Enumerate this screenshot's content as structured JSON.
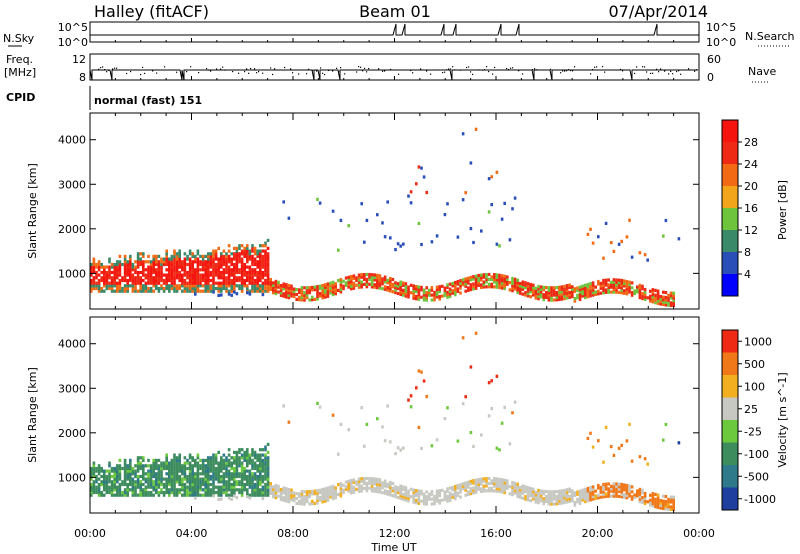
{
  "header": {
    "station": "Halley (fitACF)",
    "beam": "Beam 01",
    "date": "07/Apr/2014"
  },
  "status_panels": {
    "nsky_label": "N.Sky",
    "nsky_ticks": [
      "10^5",
      "10^0"
    ],
    "nsearch_label": "N.Search",
    "freq_label": "Freq.",
    "freq_unit": "[MHz]",
    "freq_ticks": [
      "12",
      "8"
    ],
    "nave_label": "Nave",
    "nave_ticks": [
      "60",
      "0"
    ],
    "cpid_label": "CPID",
    "cpid_value": "normal (fast) 151"
  },
  "chart_data": [
    {
      "type": "heatmap",
      "panel": "power",
      "ylabel": "Slant Range [km]",
      "yticks": [
        1000,
        2000,
        3000,
        4000
      ],
      "ylim": [
        200,
        4600
      ],
      "colorbar_label": "Power [dB]",
      "colorbar_ticks": [
        4,
        8,
        12,
        16,
        20,
        24,
        28
      ],
      "colorbar_colors": [
        "#0000ff",
        "#2a4eb8",
        "#3a8a6a",
        "#6ec43c",
        "#f2a51a",
        "#f26a14",
        "#ee2a14",
        "#f5150e"
      ]
    },
    {
      "type": "heatmap",
      "panel": "velocity",
      "ylabel": "Slant Range [km]",
      "yticks": [
        1000,
        2000,
        3000,
        4000
      ],
      "ylim": [
        200,
        4600
      ],
      "colorbar_label": "Velocity [m s^-1]",
      "colorbar_ticks": [
        "1000",
        "500",
        "100",
        "25",
        "-25",
        "-100",
        "-500",
        "-1000"
      ],
      "colorbar_colors": [
        "#1e3f9e",
        "#2e7a8a",
        "#3c8c5e",
        "#6cc83c",
        "#c8c8c2",
        "#f2b020",
        "#f07818",
        "#ee2a14"
      ],
      "xlabel": "Time UT",
      "xticks": [
        "00:00",
        "04:00",
        "08:00",
        "12:00",
        "16:00",
        "20:00",
        "00:00"
      ],
      "xlim_hours": [
        0,
        24
      ]
    }
  ],
  "colors": {
    "frame": "#000000",
    "ground_scatter": "#c8c8c2"
  }
}
